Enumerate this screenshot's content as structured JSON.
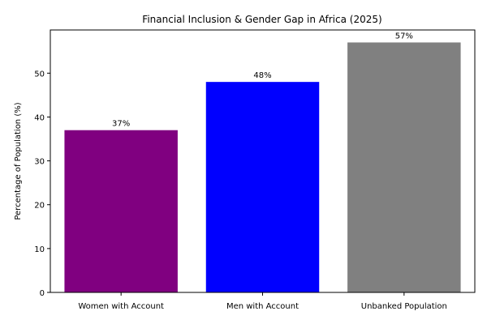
{
  "chart_data": {
    "type": "bar",
    "title": "Financial Inclusion & Gender Gap in Africa (2025)",
    "xlabel": "",
    "ylabel": "Percentage of Population (%)",
    "categories": [
      "Women with Account",
      "Men with Account",
      "Unbanked Population"
    ],
    "values": [
      37,
      48,
      57
    ],
    "data_labels": [
      "37%",
      "48%",
      "57%"
    ],
    "colors": [
      "#800080",
      "#0000ff",
      "#808080"
    ],
    "ylim": [
      0,
      59.85
    ],
    "yticks": [
      0,
      10,
      20,
      30,
      40,
      50
    ],
    "grid": false,
    "legend": "none"
  }
}
